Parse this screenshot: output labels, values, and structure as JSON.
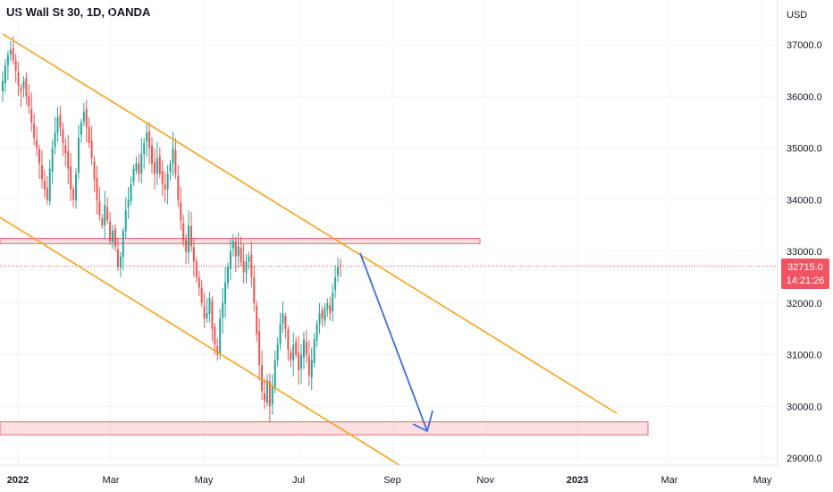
{
  "header": {
    "title": "US Wall St 30, 1D, OANDA"
  },
  "price_axis": {
    "currency": "USD",
    "ticks": [
      "37000.0",
      "36000.0",
      "35000.0",
      "34000.0",
      "33000.0",
      "32000.0",
      "31000.0",
      "30000.0",
      "29000.0"
    ],
    "last_price_label": "32715.0",
    "countdown_label": "14:21:26"
  },
  "time_axis": {
    "ticks": [
      {
        "label": "2022",
        "bold": true
      },
      {
        "label": "Mar",
        "bold": false
      },
      {
        "label": "May",
        "bold": false
      },
      {
        "label": "Jul",
        "bold": false
      },
      {
        "label": "Sep",
        "bold": false
      },
      {
        "label": "Nov",
        "bold": false
      },
      {
        "label": "2023",
        "bold": true
      },
      {
        "label": "Mar",
        "bold": false
      },
      {
        "label": "May",
        "bold": false
      }
    ]
  },
  "colors": {
    "bull": "#26a69a",
    "bear": "#ef5350",
    "channel": "#f7a21b",
    "zone_fill": "#f9c9cd",
    "zone_border": "#f0616a",
    "arrow": "#3f6fd8",
    "price_badge": "#f05462",
    "grid": "#f0f3fa"
  },
  "chart_data": {
    "type": "candlestick",
    "symbol": "US Wall St 30",
    "timeframe": "1D",
    "source": "OANDA",
    "currency": "USD",
    "ylim": [
      28900,
      37900
    ],
    "last_price": 32715.0,
    "x_ticks": [
      "2022",
      "Mar",
      "May",
      "Jul",
      "Sep",
      "Nov",
      "2023",
      "Mar",
      "May"
    ],
    "y_ticks": [
      37000,
      36000,
      35000,
      34000,
      33000,
      32000,
      31000,
      30000,
      29000
    ],
    "closes": [
      36300,
      36600,
      36800,
      36900,
      36700,
      36500,
      36200,
      36100,
      36300,
      36000,
      35800,
      35500,
      35200,
      35000,
      34700,
      34400,
      34200,
      34000,
      34600,
      35000,
      35300,
      35600,
      35400,
      35100,
      34900,
      34600,
      34200,
      34000,
      34500,
      35200,
      35500,
      35700,
      35400,
      35100,
      34800,
      34400,
      34000,
      33700,
      33500,
      33900,
      33600,
      33200,
      33400,
      33100,
      32700,
      32900,
      33400,
      33800,
      34000,
      34300,
      34600,
      34700,
      34500,
      34900,
      35100,
      35300,
      35000,
      34700,
      34500,
      34800,
      34500,
      34300,
      34200,
      34500,
      34700,
      35000,
      34500,
      34000,
      33600,
      33200,
      33000,
      33500,
      33100,
      32800,
      32500,
      32300,
      32000,
      31700,
      31800,
      32100,
      31500,
      31200,
      31000,
      31700,
      32000,
      32400,
      32700,
      33000,
      33200,
      32900,
      33100,
      32800,
      32600,
      32800,
      32900,
      32500,
      32000,
      31400,
      30800,
      30300,
      30100,
      30500,
      30000,
      30400,
      30900,
      31200,
      31600,
      31800,
      31500,
      31100,
      30900,
      31200,
      31000,
      30700,
      31000,
      31300,
      31000,
      30600,
      30900,
      31300,
      31600,
      31800,
      31700,
      31900,
      32000,
      31800,
      32200,
      32500,
      32700,
      32715
    ]
  }
}
